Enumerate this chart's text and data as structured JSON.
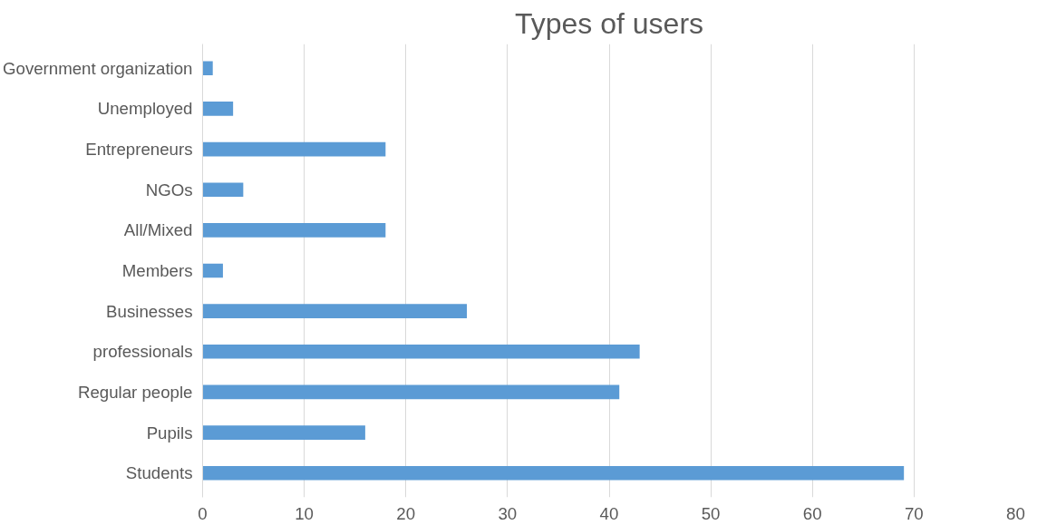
{
  "chart_data": {
    "type": "bar",
    "orientation": "horizontal",
    "title": "Types of users",
    "categories": [
      "Government organization",
      "Unemployed",
      "Entrepreneurs",
      "NGOs",
      "All/Mixed",
      "Members",
      "Businesses",
      "professionals",
      "Regular people",
      "Pupils",
      "Students"
    ],
    "values": [
      1,
      3,
      18,
      4,
      18,
      2,
      26,
      43,
      41,
      16,
      69
    ],
    "color": "#5b9bd5",
    "xlim": [
      0,
      80
    ],
    "xticks": [
      0,
      10,
      20,
      30,
      40,
      50,
      60,
      70,
      80
    ],
    "grid": "x"
  }
}
